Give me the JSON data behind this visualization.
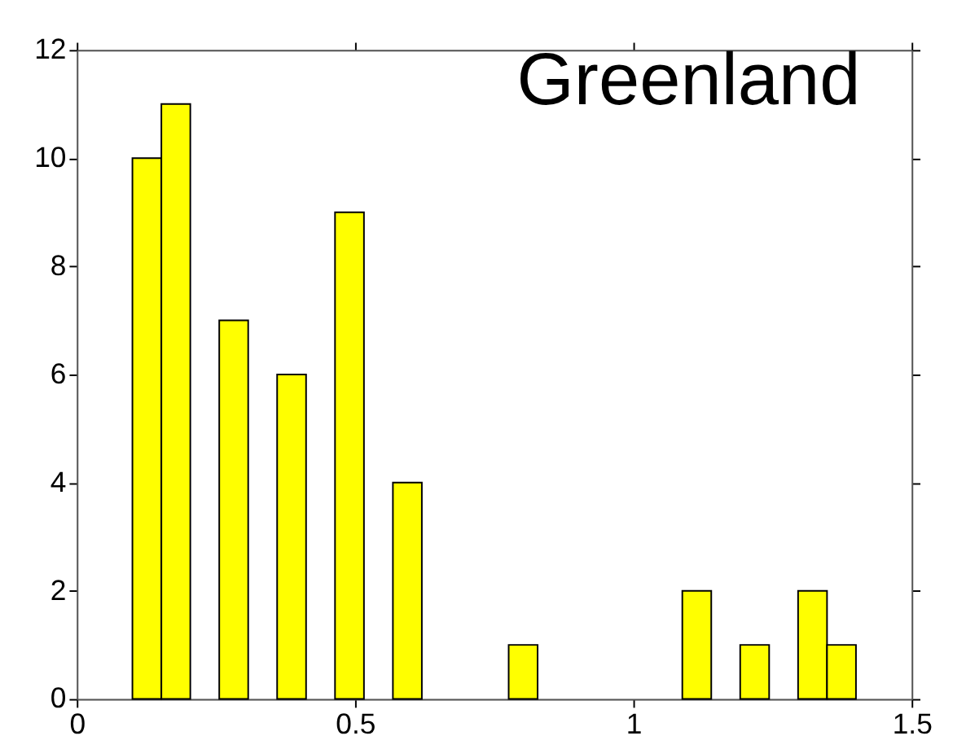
{
  "chart_data": {
    "type": "histogram",
    "bins": [
      0.1,
      0.152,
      0.204,
      0.256,
      0.308,
      0.36,
      0.412,
      0.464,
      0.516,
      0.568,
      0.62,
      0.672,
      0.724,
      0.776,
      0.828,
      0.88,
      0.932,
      0.984,
      1.036,
      1.088,
      1.14,
      1.192,
      1.244,
      1.296,
      1.348,
      1.4
    ],
    "values": [
      10,
      11,
      0,
      7,
      0,
      6,
      0,
      9,
      0,
      4,
      0,
      0,
      0,
      1,
      0,
      0,
      0,
      0,
      0,
      2,
      0,
      1,
      0,
      2,
      1
    ],
    "color": "#ffff00",
    "annotations": [
      "Greenland"
    ],
    "xlim": [
      0,
      1.5
    ],
    "xticks": [
      0,
      0.5,
      1,
      1.5
    ],
    "ylim": [
      0,
      12
    ],
    "yticks": [
      0,
      2,
      4,
      6,
      8,
      10,
      12
    ],
    "grid": false
  }
}
